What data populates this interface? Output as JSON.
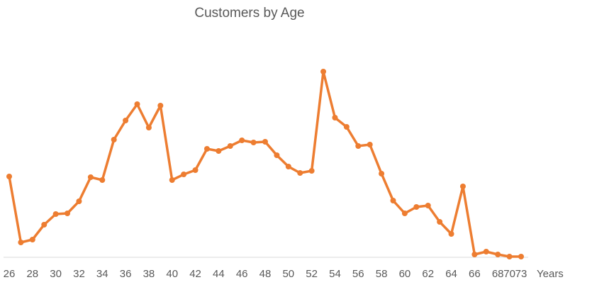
{
  "chart_data": {
    "type": "line",
    "title": "Customers by Age",
    "x_label": "Years",
    "categories": [
      "26",
      null,
      "28",
      null,
      "30",
      null,
      "32",
      null,
      "34",
      null,
      "36",
      null,
      "38",
      null,
      "40",
      null,
      "42",
      null,
      "44",
      null,
      "46",
      null,
      "48",
      null,
      "50",
      null,
      "52",
      null,
      "54",
      null,
      "56",
      null,
      "58",
      null,
      "60",
      null,
      "62",
      null,
      "64",
      null,
      "66",
      null,
      "68",
      "70",
      "73"
    ],
    "series": [
      {
        "name": "Customers",
        "color": "#ed7d31",
        "values": [
          114,
          21,
          25,
          46,
          61,
          62,
          79,
          113,
          109,
          166,
          193,
          216,
          183,
          214,
          109,
          117,
          123,
          153,
          150,
          157,
          165,
          162,
          163,
          144,
          128,
          119,
          122,
          262,
          197,
          184,
          157,
          159,
          118,
          80,
          62,
          71,
          73,
          50,
          33,
          100,
          4,
          8,
          4,
          1,
          1
        ]
      }
    ],
    "ylim": [
      0,
      270
    ]
  }
}
